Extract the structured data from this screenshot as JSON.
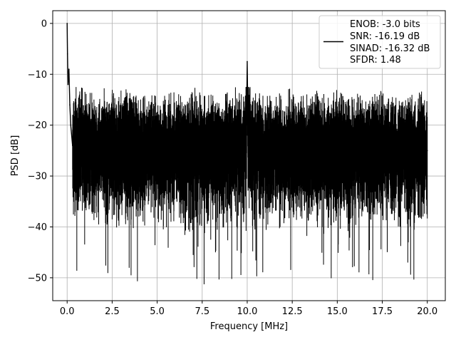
{
  "chart_data": {
    "type": "line",
    "title": "",
    "xlabel": "Frequency [MHz]",
    "ylabel": "PSD [dB]",
    "xlim": [
      -0.8,
      21.0
    ],
    "ylim": [
      -54.5,
      2.5
    ],
    "xticks": [
      0.0,
      2.5,
      5.0,
      7.5,
      10.0,
      12.5,
      15.0,
      17.5,
      20.0
    ],
    "xtick_labels": [
      "0.0",
      "2.5",
      "5.0",
      "7.5",
      "10.0",
      "12.5",
      "15.0",
      "17.5",
      "20.0"
    ],
    "yticks": [
      0,
      -10,
      -20,
      -30,
      -40,
      -50
    ],
    "ytick_labels": [
      "0",
      "−10",
      "−20",
      "−30",
      "−40",
      "−50"
    ],
    "grid": true,
    "line_color": "#000000",
    "legend_placement": "top-right",
    "legend_entries": [
      "ENOB: -3.0 bits",
      "SNR: -16.19 dB",
      "SINAD: -16.32 dB",
      "SFDR: 1.48"
    ],
    "series": [
      {
        "x": [
          0.0,
          0.02,
          0.05,
          0.1,
          0.15,
          0.2,
          0.3,
          0.4,
          0.5,
          0.6,
          0.7,
          0.8,
          1.0,
          1.3,
          1.6,
          1.9,
          2.2,
          2.5,
          2.8,
          3.1,
          3.4,
          3.7,
          4.0,
          4.3,
          4.6,
          5.0,
          5.3,
          5.6,
          5.9,
          6.2,
          6.5,
          6.8,
          7.1,
          7.4,
          7.7,
          8.0,
          8.3,
          8.6,
          8.9,
          9.2,
          9.5,
          9.8,
          9.96,
          10.0,
          10.04,
          10.3,
          10.6,
          10.9,
          11.2,
          11.5,
          11.8,
          12.1,
          12.4,
          12.7,
          13.0,
          13.3,
          13.6,
          13.9,
          14.2,
          14.5,
          14.8,
          15.1,
          15.4,
          15.7,
          16.0,
          16.3,
          16.6,
          16.9,
          17.2,
          17.5,
          17.8,
          18.1,
          18.4,
          18.7,
          19.0,
          19.3,
          19.6,
          19.9,
          20.0
        ],
        "y": [
          0.0,
          -6.0,
          -12.0,
          -9.0,
          -16.0,
          -20.0,
          -24.0,
          -25.0,
          -22.0,
          -26.0,
          -24.0,
          -23.0,
          -25.0,
          -24.0,
          -26.0,
          -24.0,
          -25.0,
          -23.0,
          -26.0,
          -24.0,
          -25.0,
          -24.0,
          -26.0,
          -25.0,
          -24.0,
          -25.0,
          -26.0,
          -24.0,
          -25.0,
          -24.0,
          -26.0,
          -25.0,
          -24.0,
          -25.0,
          -26.0,
          -24.0,
          -25.0,
          -26.0,
          -24.0,
          -25.0,
          -24.0,
          -25.0,
          -20.0,
          -7.5,
          -20.0,
          -25.0,
          -24.0,
          -26.0,
          -25.0,
          -24.0,
          -25.0,
          -26.0,
          -24.0,
          -25.0,
          -24.0,
          -26.0,
          -25.0,
          -24.0,
          -25.0,
          -26.0,
          -24.0,
          -25.0,
          -24.0,
          -26.0,
          -25.0,
          -24.0,
          -25.0,
          -26.0,
          -24.0,
          -25.0,
          -24.0,
          -26.0,
          -25.0,
          -24.0,
          -25.0,
          -26.0,
          -24.0,
          -25.0,
          -25.0
        ]
      }
    ]
  }
}
